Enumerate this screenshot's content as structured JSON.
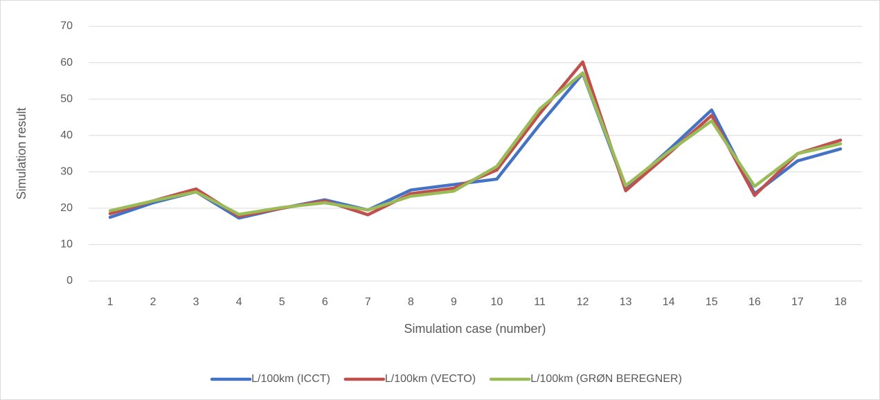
{
  "chart_data": {
    "type": "line",
    "x_label": "Simulation case (number)",
    "y_label": "Simulation result",
    "categories": [
      "1",
      "2",
      "3",
      "4",
      "5",
      "6",
      "7",
      "8",
      "9",
      "10",
      "11",
      "12",
      "13",
      "14",
      "15",
      "16",
      "17",
      "18"
    ],
    "series": [
      {
        "name": "L/100km (ICCT)",
        "color": "#4472c4",
        "values": [
          17.5,
          21.5,
          24.5,
          17.3,
          20,
          22.3,
          19.5,
          25,
          26.5,
          28,
          43,
          57,
          25.5,
          36,
          47,
          24,
          33,
          36.3
        ]
      },
      {
        "name": "L/100km (VECTO)",
        "color": "#c0504d",
        "values": [
          18.5,
          22,
          25.3,
          17.8,
          20,
          22,
          18.2,
          24,
          25.5,
          30.5,
          46,
          60.2,
          24.8,
          35,
          45.5,
          23.5,
          35,
          38.7
        ]
      },
      {
        "name": "L/100km (GRØN BEREGNER)",
        "color": "#9bbb59",
        "values": [
          19.3,
          22,
          24.5,
          18.3,
          20.2,
          21.5,
          19.5,
          23.3,
          24.7,
          31.5,
          47.3,
          57.2,
          26.2,
          35.5,
          44,
          26,
          35,
          37.7
        ]
      }
    ],
    "ylim": [
      0,
      70
    ],
    "yticks": [
      0,
      10,
      20,
      30,
      40,
      50,
      60,
      70
    ],
    "grid": true,
    "legend": "bottom"
  }
}
